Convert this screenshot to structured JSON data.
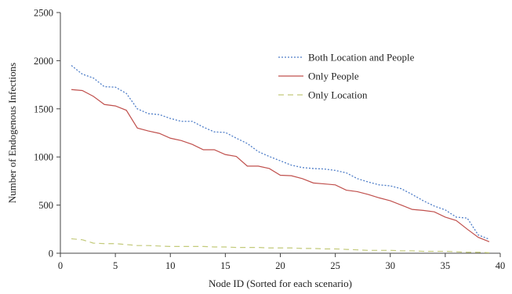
{
  "chart_data": {
    "type": "line",
    "title": "",
    "xlabel": "Node ID (Sorted for each scenario)",
    "ylabel": "Number of  Endogenous  Infections",
    "xlim": [
      0,
      40
    ],
    "ylim": [
      0,
      2500
    ],
    "xticks": [
      0,
      5,
      10,
      15,
      20,
      25,
      30,
      35,
      40
    ],
    "yticks": [
      0,
      500,
      1000,
      1500,
      2000,
      2500
    ],
    "grid": false,
    "legend_position": "top-right",
    "x": [
      1,
      2,
      3,
      4,
      5,
      6,
      7,
      8,
      9,
      10,
      11,
      12,
      13,
      14,
      15,
      16,
      17,
      18,
      19,
      20,
      21,
      22,
      23,
      24,
      25,
      26,
      27,
      28,
      29,
      30,
      31,
      32,
      33,
      34,
      35,
      36,
      37,
      38,
      39
    ],
    "series": [
      {
        "name": "Both Location and People",
        "color": "#4f7ec8",
        "style": "dotted",
        "values": [
          1950,
          1860,
          1820,
          1730,
          1725,
          1660,
          1500,
          1450,
          1440,
          1400,
          1370,
          1370,
          1310,
          1260,
          1255,
          1195,
          1140,
          1055,
          1005,
          960,
          915,
          890,
          880,
          875,
          860,
          835,
          775,
          740,
          710,
          700,
          670,
          610,
          545,
          490,
          450,
          375,
          365,
          190,
          145
        ]
      },
      {
        "name": "Only People",
        "color": "#c0504d",
        "style": "solid",
        "values": [
          1700,
          1690,
          1630,
          1545,
          1530,
          1485,
          1300,
          1270,
          1245,
          1195,
          1170,
          1130,
          1075,
          1075,
          1025,
          1005,
          905,
          905,
          880,
          810,
          805,
          775,
          730,
          720,
          710,
          655,
          640,
          610,
          575,
          545,
          500,
          455,
          445,
          430,
          375,
          340,
          250,
          165,
          120
        ]
      },
      {
        "name": "Only Location",
        "color": "#c3ca7a",
        "style": "dashed",
        "values": [
          150,
          140,
          105,
          100,
          100,
          90,
          80,
          80,
          75,
          70,
          70,
          70,
          70,
          65,
          65,
          60,
          60,
          60,
          55,
          55,
          55,
          50,
          50,
          45,
          45,
          40,
          35,
          30,
          30,
          30,
          25,
          25,
          20,
          20,
          20,
          15,
          10,
          10,
          5
        ]
      }
    ]
  }
}
